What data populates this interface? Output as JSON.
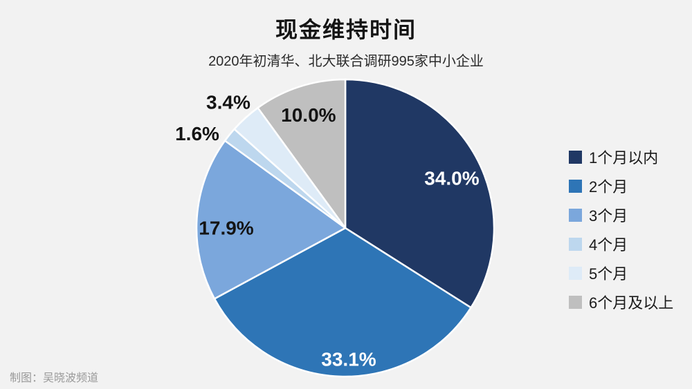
{
  "page": {
    "background": "#f2f2f2"
  },
  "header": {
    "title": "现金维持时间",
    "subtitle": "2020年初清华、北大联合调研995家中小企业"
  },
  "footer": {
    "credit": "制图：吴晓波频道"
  },
  "chart_data": {
    "type": "pie",
    "title": "现金维持时间",
    "subtitle": "2020年初清华、北大联合调研995家中小企业",
    "start_angle_deg": 0,
    "direction": "clockwise",
    "legend_position": "right",
    "slice_border_color": "#ffffff",
    "slices": [
      {
        "name": "1个月以内",
        "value": 34.0,
        "label": "34.0%",
        "color": "#203864",
        "label_color": "#ffffff",
        "label_angle_deg": 65.0,
        "label_r": 0.79
      },
      {
        "name": "2个月",
        "value": 33.1,
        "label": "33.1%",
        "color": "#2e75b6",
        "label_color": "#ffffff",
        "label_angle_deg": 178.5,
        "label_r": 0.885
      },
      {
        "name": "3个月",
        "value": 17.9,
        "label": "17.9%",
        "color": "#7ba7dc",
        "label_color": "#141414",
        "label_angle_deg": 270.0,
        "label_r": 0.8
      },
      {
        "name": "4个月",
        "value": 1.6,
        "label": "1.6%",
        "color": "#bdd7ee",
        "label_color": "#141414",
        "label_angle_deg": 302.5,
        "label_r": 1.18
      },
      {
        "name": "5个月",
        "value": 3.4,
        "label": "3.4%",
        "color": "#deebf7",
        "label_color": "#141414",
        "label_angle_deg": 317.1,
        "label_r": 1.155
      },
      {
        "name": "6个月及以上",
        "value": 10.0,
        "label": "10.0%",
        "color": "#bfbfbf",
        "label_color": "#141414",
        "label_angle_deg": 342.0,
        "label_r": 0.8
      }
    ]
  }
}
